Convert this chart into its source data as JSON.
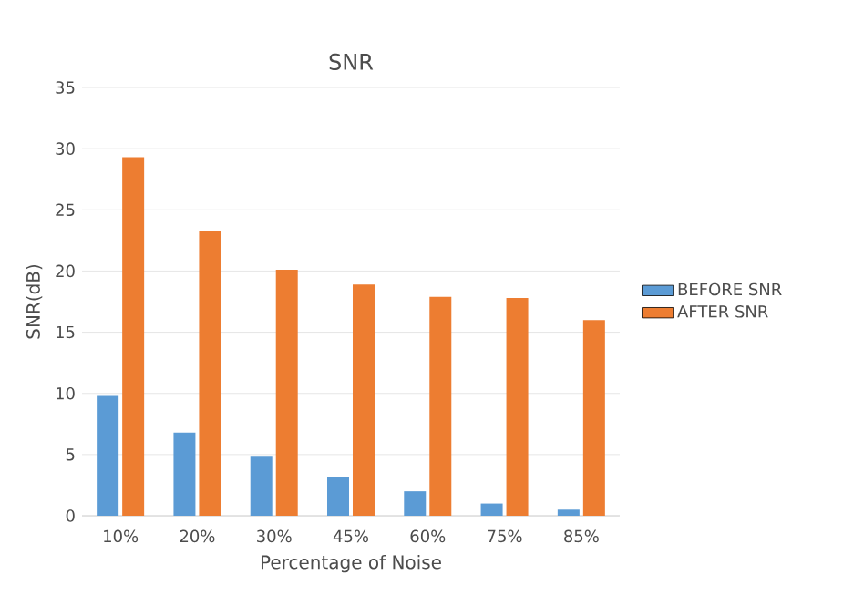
{
  "chart_data": {
    "type": "bar",
    "title": "SNR",
    "xlabel": "Percentage of Noise",
    "ylabel": "SNR(dB)",
    "categories": [
      "10%",
      "20%",
      "30%",
      "45%",
      "60%",
      "75%",
      "85%"
    ],
    "series": [
      {
        "name": "BEFORE SNR",
        "color": "#5b9bd5",
        "values": [
          9.8,
          6.8,
          4.9,
          3.2,
          2.0,
          1.0,
          0.5
        ]
      },
      {
        "name": "AFTER SNR",
        "color": "#ed7d31",
        "values": [
          29.3,
          23.3,
          20.1,
          18.9,
          17.9,
          17.8,
          16.0
        ]
      }
    ],
    "ylim": [
      0,
      35
    ],
    "yticks": [
      0,
      5,
      10,
      15,
      20,
      25,
      30,
      35
    ],
    "grid": "y",
    "legend": "right"
  }
}
